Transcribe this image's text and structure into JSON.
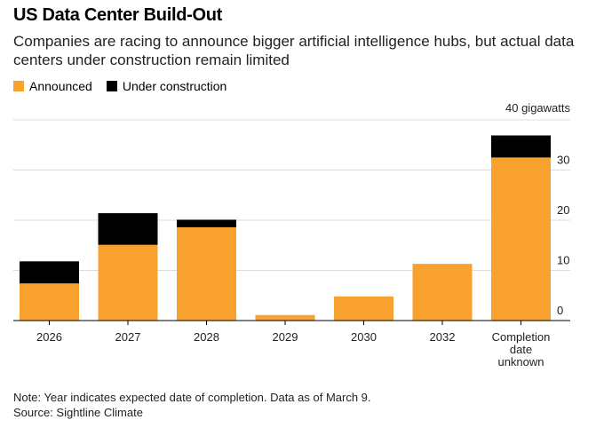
{
  "chart_data": {
    "type": "bar",
    "stacked": true,
    "title": "US Data Center Build-Out",
    "subtitle": "Companies are racing to announce bigger artificial intelligence hubs, but actual data centers under construction remain limited",
    "categories": [
      "2026",
      "2027",
      "2028",
      "2029",
      "2030",
      "2032",
      "Completion date unknown"
    ],
    "series": [
      {
        "name": "Announced",
        "color": "#f9a12e",
        "values": [
          7.4,
          15.1,
          18.6,
          1.1,
          4.8,
          11.3,
          32.5
        ]
      },
      {
        "name": "Under construction",
        "color": "#000000",
        "values": [
          4.4,
          6.3,
          1.5,
          0,
          0,
          0,
          4.4
        ]
      }
    ],
    "ylim": [
      0,
      40
    ],
    "yticks": [
      0,
      10,
      20,
      30,
      40
    ],
    "ytick_labels": [
      "0",
      "10",
      "20",
      "30",
      "40 gigawatts"
    ],
    "yaxis_position": "right",
    "grid": true,
    "legend_position": "top-left",
    "note": "Note: Year indicates expected date of completion. Data as of March 9.",
    "source": "Source: Sightline Climate"
  }
}
